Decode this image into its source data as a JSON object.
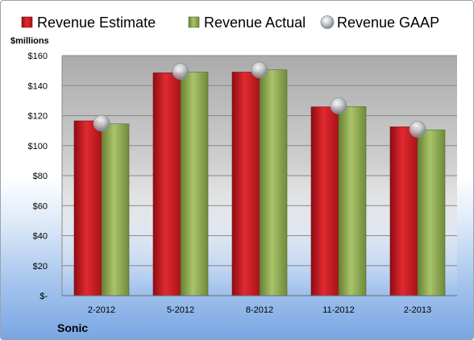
{
  "chart_data": {
    "type": "bar",
    "title": "",
    "ylabel": "$millions",
    "company": "Sonic",
    "categories": [
      "2-2012",
      "5-2012",
      "8-2012",
      "11-2012",
      "2-2013"
    ],
    "series": [
      {
        "name": "Revenue Estimate",
        "kind": "bar",
        "color": "#c8181f",
        "values": [
          116.5,
          148.5,
          149,
          125.8,
          112.5
        ]
      },
      {
        "name": "Revenue Actual",
        "kind": "bar",
        "color": "#8cab52",
        "values": [
          114.5,
          149,
          150.5,
          126,
          110.5
        ]
      },
      {
        "name": "Revenue GAAP",
        "kind": "marker",
        "color": "#b8bcc4",
        "values": [
          115,
          149.5,
          150.5,
          126.5,
          111
        ]
      }
    ],
    "ylim": [
      0,
      160
    ],
    "yticks": [
      0,
      20,
      40,
      60,
      80,
      100,
      120,
      140,
      160
    ],
    "ytick_labels": [
      "$-",
      "$20",
      "$40",
      "$60",
      "$80",
      "$100",
      "$120",
      "$140",
      "$160"
    ],
    "grid": true,
    "legend_position": "top"
  }
}
